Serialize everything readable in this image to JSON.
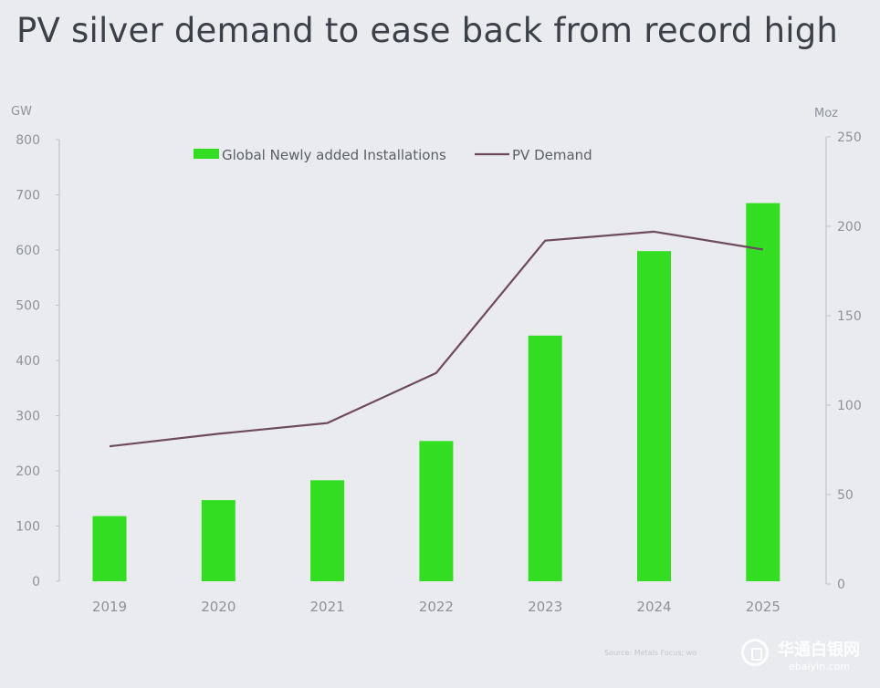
{
  "title": "PV silver demand to ease back from record high",
  "source_text": "Source: Metals Focus; wo",
  "watermark": {
    "name": "华通白银网",
    "url": "ebaiyin.com"
  },
  "colors": {
    "bar": "#33dd22",
    "line": "#6e4a5c",
    "axis": "#bfc3c8",
    "tick": "#8e929a"
  },
  "chart_data": {
    "type": "bar",
    "title": "PV silver demand to ease back from record high",
    "categories": [
      "2019",
      "2020",
      "2021",
      "2022",
      "2023",
      "2024",
      "2025"
    ],
    "left_axis": {
      "label": "GW",
      "ylim": [
        0,
        800
      ],
      "ticks": [
        0,
        100,
        200,
        300,
        400,
        500,
        600,
        700,
        800
      ]
    },
    "right_axis": {
      "label": "Moz",
      "ylim": [
        0,
        250
      ],
      "ticks": [
        0,
        50,
        100,
        150,
        200,
        250
      ]
    },
    "series": [
      {
        "name": "Global Newly added Installations",
        "type": "bar",
        "axis": "left",
        "values": [
          118,
          147,
          183,
          254,
          445,
          598,
          685
        ]
      },
      {
        "name": "PV Demand",
        "type": "line",
        "axis": "right",
        "values": [
          77,
          84,
          90,
          118,
          192,
          197,
          187
        ]
      }
    ],
    "legend_position": "top-center",
    "grid": false
  }
}
